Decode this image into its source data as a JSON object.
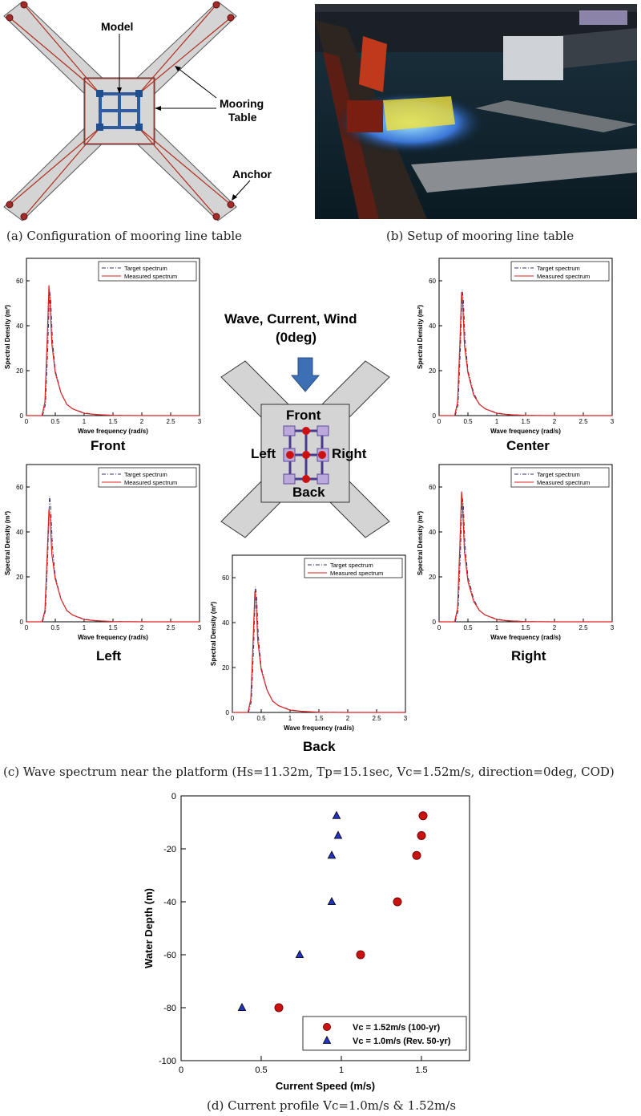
{
  "panel_a": {
    "labels": {
      "model": "Model",
      "mooring": "Mooring",
      "table": "Table",
      "anchor": "Anchor"
    },
    "caption": "(a) Configuration of mooring line table"
  },
  "panel_b": {
    "caption": "(b) Setup of mooring line table"
  },
  "panel_c": {
    "heading_line1": "Wave, Current, Wind",
    "heading_line2": "(0deg)",
    "positions": {
      "front": "Front",
      "left": "Left",
      "right": "Right",
      "back": "Back"
    },
    "caption": "(c) Wave spectrum near the platform (Hs=11.32m, Tp=15.1sec, Vc=1.52m/s, direction=0deg, COD)"
  },
  "panel_d": {
    "caption": "(d) Current profile Vc=1.0m/s & 1.52m/s"
  },
  "colors": {
    "target": "#333366",
    "measured": "#dd2222",
    "red_marker": "#cc1111",
    "blue_marker": "#2233cc",
    "table_gray": "#d4d4d4"
  },
  "chart_data": [
    {
      "type": "line",
      "name": "Front",
      "xlabel": "Wave frequency (rad/s)",
      "ylabel": "Spectral Density (m²)",
      "xlim": [
        0,
        3
      ],
      "ylim": [
        0,
        70
      ],
      "xticks": [
        "0",
        "0.5",
        "1",
        "1.5",
        "2",
        "2.5",
        "3"
      ],
      "yticks": [
        "0",
        "20",
        "40",
        "60"
      ],
      "legend": [
        "Target spectrum",
        "Measured spectrum"
      ],
      "legend_position": "top-right",
      "series": [
        {
          "name": "Target spectrum",
          "x": [
            0,
            0.28,
            0.33,
            0.37,
            0.4,
            0.42,
            0.45,
            0.5,
            0.6,
            0.7,
            0.8,
            1.0,
            1.2,
            1.5,
            2,
            3
          ],
          "values": [
            0,
            0,
            5,
            30,
            56,
            52,
            34,
            20,
            10,
            5,
            3,
            1.2,
            0.5,
            0.1,
            0,
            0
          ]
        },
        {
          "name": "Measured spectrum",
          "x": [
            0,
            0.27,
            0.32,
            0.36,
            0.39,
            0.41,
            0.44,
            0.5,
            0.6,
            0.7,
            0.8,
            1.0,
            1.2,
            1.5,
            2,
            3
          ],
          "values": [
            0,
            0,
            6,
            34,
            58,
            50,
            32,
            19,
            10,
            5,
            3,
            1,
            0.5,
            0.1,
            0,
            0
          ]
        }
      ]
    },
    {
      "type": "line",
      "name": "Center",
      "xlabel": "Wave frequency (rad/s)",
      "ylabel": "Spectral Density (m²)",
      "xlim": [
        0,
        3
      ],
      "ylim": [
        0,
        70
      ],
      "xticks": [
        "0",
        "0.5",
        "1",
        "1.5",
        "2",
        "2.5",
        "3"
      ],
      "yticks": [
        "0",
        "20",
        "40",
        "60"
      ],
      "legend": [
        "Target spectrum",
        "Measured spectrum"
      ],
      "legend_position": "top-right",
      "series": [
        {
          "name": "Target spectrum",
          "x": [
            0,
            0.28,
            0.33,
            0.37,
            0.4,
            0.42,
            0.45,
            0.5,
            0.6,
            0.7,
            0.8,
            1.0,
            1.2,
            1.5,
            2,
            3
          ],
          "values": [
            0,
            0,
            5,
            30,
            56,
            52,
            34,
            20,
            10,
            5,
            3,
            1.2,
            0.5,
            0.1,
            0,
            0
          ]
        },
        {
          "name": "Measured spectrum",
          "x": [
            0,
            0.27,
            0.32,
            0.36,
            0.39,
            0.41,
            0.44,
            0.5,
            0.6,
            0.7,
            0.8,
            1.0,
            1.2,
            1.5,
            2,
            3
          ],
          "values": [
            0,
            0,
            6,
            32,
            55,
            50,
            31,
            19,
            9,
            5,
            3,
            1,
            0.4,
            0.1,
            0,
            0
          ]
        }
      ]
    },
    {
      "type": "line",
      "name": "Left",
      "xlabel": "Wave frequency (rad/s)",
      "ylabel": "Spectral Density (m²)",
      "xlim": [
        0,
        3
      ],
      "ylim": [
        0,
        70
      ],
      "xticks": [
        "0",
        "0.5",
        "1",
        "1.5",
        "2",
        "2.5",
        "3"
      ],
      "yticks": [
        "0",
        "20",
        "40",
        "60"
      ],
      "legend": [
        "Target spectrum",
        "Measured spectrum"
      ],
      "legend_position": "top-right",
      "series": [
        {
          "name": "Target spectrum",
          "x": [
            0,
            0.28,
            0.33,
            0.37,
            0.4,
            0.42,
            0.45,
            0.5,
            0.6,
            0.7,
            0.8,
            1.0,
            1.2,
            1.5,
            2,
            3
          ],
          "values": [
            0,
            0,
            5,
            30,
            56,
            52,
            34,
            20,
            10,
            5,
            3,
            1.2,
            0.5,
            0.1,
            0,
            0
          ]
        },
        {
          "name": "Measured spectrum",
          "x": [
            0,
            0.27,
            0.32,
            0.36,
            0.39,
            0.41,
            0.44,
            0.5,
            0.6,
            0.7,
            0.8,
            1.0,
            1.2,
            1.5,
            2,
            3
          ],
          "values": [
            0,
            0,
            5,
            30,
            50,
            47,
            30,
            19,
            10,
            5,
            3,
            1,
            0.5,
            0.1,
            0,
            0
          ]
        }
      ]
    },
    {
      "type": "line",
      "name": "Right",
      "xlabel": "Wave frequency (rad/s)",
      "ylabel": "Spectral Density (m²)",
      "xlim": [
        0,
        3
      ],
      "ylim": [
        0,
        70
      ],
      "xticks": [
        "0",
        "0.5",
        "1",
        "1.5",
        "2",
        "2.5",
        "3"
      ],
      "yticks": [
        "0",
        "20",
        "40",
        "60"
      ],
      "legend": [
        "Target spectrum",
        "Measured spectrum"
      ],
      "legend_position": "top-right",
      "series": [
        {
          "name": "Target spectrum",
          "x": [
            0,
            0.28,
            0.33,
            0.37,
            0.4,
            0.42,
            0.45,
            0.5,
            0.6,
            0.7,
            0.8,
            1.0,
            1.2,
            1.5,
            2,
            3
          ],
          "values": [
            0,
            0,
            5,
            30,
            56,
            52,
            34,
            20,
            10,
            5,
            3,
            1.2,
            0.5,
            0.1,
            0,
            0
          ]
        },
        {
          "name": "Measured spectrum",
          "x": [
            0,
            0.27,
            0.32,
            0.36,
            0.39,
            0.41,
            0.44,
            0.5,
            0.6,
            0.7,
            0.8,
            1.0,
            1.2,
            1.5,
            2,
            3
          ],
          "values": [
            0,
            0,
            6,
            34,
            58,
            50,
            31,
            18,
            9,
            5,
            3,
            1,
            0.4,
            0.1,
            0,
            0
          ]
        }
      ]
    },
    {
      "type": "line",
      "name": "Back",
      "xlabel": "Wave frequency (rad/s)",
      "ylabel": "Spectral Density (m²)",
      "xlim": [
        0,
        3
      ],
      "ylim": [
        0,
        70
      ],
      "xticks": [
        "0",
        "0.5",
        "1",
        "1.5",
        "2",
        "2.5",
        "3"
      ],
      "yticks": [
        "0",
        "20",
        "40",
        "60"
      ],
      "legend": [
        "Target spectrum",
        "Measured spectrum"
      ],
      "legend_position": "top-right",
      "series": [
        {
          "name": "Target spectrum",
          "x": [
            0,
            0.28,
            0.33,
            0.37,
            0.4,
            0.42,
            0.45,
            0.5,
            0.6,
            0.7,
            0.8,
            1.0,
            1.2,
            1.5,
            2,
            3
          ],
          "values": [
            0,
            0,
            5,
            30,
            56,
            52,
            34,
            20,
            10,
            5,
            3,
            1.2,
            0.5,
            0.1,
            0,
            0
          ]
        },
        {
          "name": "Measured spectrum",
          "x": [
            0,
            0.27,
            0.32,
            0.36,
            0.39,
            0.41,
            0.44,
            0.5,
            0.6,
            0.7,
            0.8,
            1.0,
            1.2,
            1.5,
            2,
            3
          ],
          "values": [
            0,
            0,
            6,
            32,
            54,
            50,
            32,
            19,
            10,
            5,
            3,
            1,
            0.5,
            0.1,
            0,
            0
          ]
        }
      ]
    },
    {
      "type": "scatter",
      "name": "Current profile",
      "xlabel": "Current Speed (m/s)",
      "ylabel": "Water Depth (m)",
      "xlim": [
        0,
        1.8
      ],
      "ylim": [
        -100,
        0
      ],
      "xticks": [
        "0",
        "0.5",
        "1",
        "1.5"
      ],
      "yticks": [
        "0",
        "-20",
        "-40",
        "-60",
        "-80",
        "-100"
      ],
      "legend_position": "bottom-right",
      "series": [
        {
          "name": "Vc = 1.52m/s (100-yr)",
          "marker": "circle",
          "x": [
            1.51,
            1.5,
            1.47,
            1.35,
            1.12,
            0.61
          ],
          "values": [
            -7.5,
            -15,
            -22.5,
            -40,
            -60,
            -80
          ]
        },
        {
          "name": "Vc = 1.0m/s (Rev. 50-yr)",
          "marker": "triangle",
          "x": [
            0.97,
            0.98,
            0.94,
            0.94,
            0.74,
            0.38
          ],
          "values": [
            -7.5,
            -15,
            -22.5,
            -40,
            -60,
            -80
          ]
        }
      ]
    }
  ]
}
